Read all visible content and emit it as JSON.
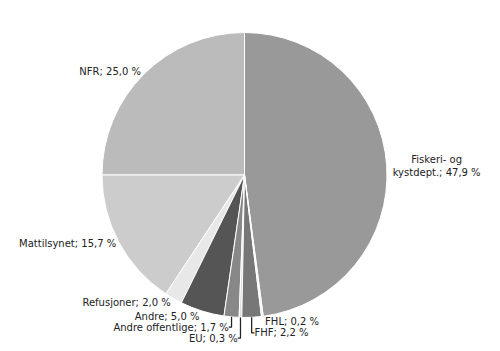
{
  "chart_data": {
    "type": "pie",
    "values": [
      47.9,
      25.0,
      15.7,
      2.0,
      5.0,
      1.7,
      0.3,
      2.2,
      0.2
    ],
    "value_labels": [
      "Fiskeri- og\nkystdept.; 47,9 %",
      "NFR; 25,0 %",
      "Mattilsynet; 15,7 %",
      "Refusjoner; 2,0 %",
      "Andre; 5,0 %",
      "Andre offentlige; 1,7 %",
      "EU; 0,3 %",
      "FHF; 2,2 %",
      "FHL; 0,2 %"
    ],
    "colors": [
      "#999999",
      "#bbbbbb",
      "#cccccc",
      "#e8e8e8",
      "#555555",
      "#888888",
      "#dddddd",
      "#777777",
      "#eeeeee"
    ],
    "data_labels": true,
    "legend": false
  }
}
